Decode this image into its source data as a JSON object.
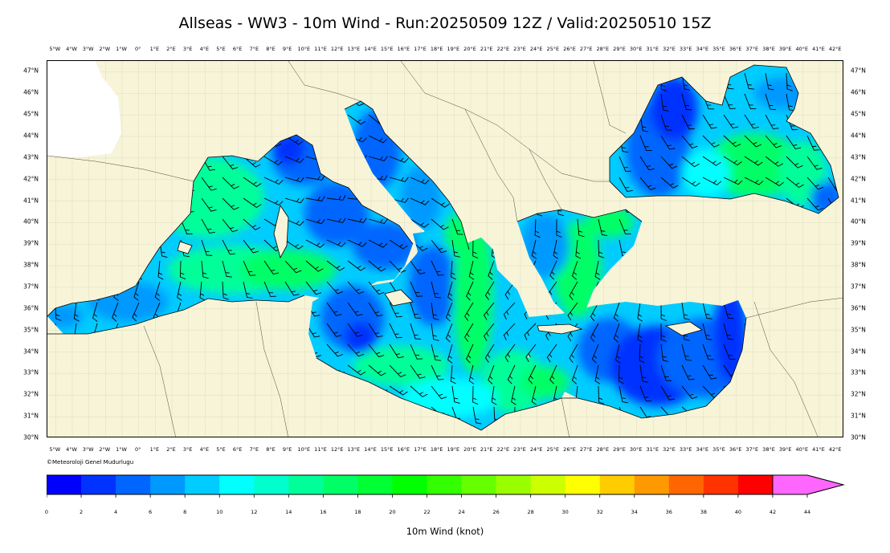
{
  "title": "Allseas - WW3 - 10m Wind - Run:20250509 12Z / Valid:20250510 15Z",
  "credit": "©Meteoroloji Genel Mudurlugu",
  "colorbar": {
    "label": "10m Wind (knot)",
    "ticks": [
      "0",
      "2",
      "4",
      "6",
      "8",
      "10",
      "12",
      "14",
      "16",
      "18",
      "20",
      "22",
      "24",
      "26",
      "28",
      "30",
      "32",
      "34",
      "36",
      "38",
      "40",
      "42",
      "44"
    ],
    "colors": [
      "#0000ff",
      "#0033ff",
      "#0066ff",
      "#0099ff",
      "#00ccff",
      "#00ffff",
      "#00ffcc",
      "#00ff99",
      "#00ff66",
      "#00ff33",
      "#00ff00",
      "#33ff00",
      "#66ff00",
      "#99ff00",
      "#ccff00",
      "#ffff00",
      "#ffcc00",
      "#ff9900",
      "#ff6600",
      "#ff3300",
      "#ff0000",
      "#ff66ff"
    ],
    "extend_color": "#ff66ff"
  },
  "axes": {
    "lon_labels": [
      "5°W",
      "4°W",
      "3°W",
      "2°W",
      "1°W",
      "0°",
      "1°E",
      "2°E",
      "3°E",
      "4°E",
      "5°E",
      "6°E",
      "7°E",
      "8°E",
      "9°E",
      "10°E",
      "11°E",
      "12°E",
      "13°E",
      "14°E",
      "15°E",
      "16°E",
      "17°E",
      "18°E",
      "19°E",
      "20°E",
      "21°E",
      "22°E",
      "23°E",
      "24°E",
      "25°E",
      "26°E",
      "27°E",
      "28°E",
      "29°E",
      "30°E",
      "31°E",
      "32°E",
      "33°E",
      "34°E",
      "35°E",
      "36°E",
      "37°E",
      "38°E",
      "39°E",
      "40°E",
      "41°E",
      "42°E"
    ],
    "lat_labels": [
      "47°N",
      "46°N",
      "45°N",
      "44°N",
      "43°N",
      "42°N",
      "41°N",
      "40°N",
      "39°N",
      "38°N",
      "37°N",
      "36°N",
      "35°N",
      "34°N",
      "33°N",
      "32°N",
      "31°N",
      "30°N"
    ]
  },
  "map": {
    "land_color": "#f7f4d8",
    "lon_range": [
      -5.5,
      42.5
    ],
    "lat_range": [
      30,
      47.5
    ]
  }
}
